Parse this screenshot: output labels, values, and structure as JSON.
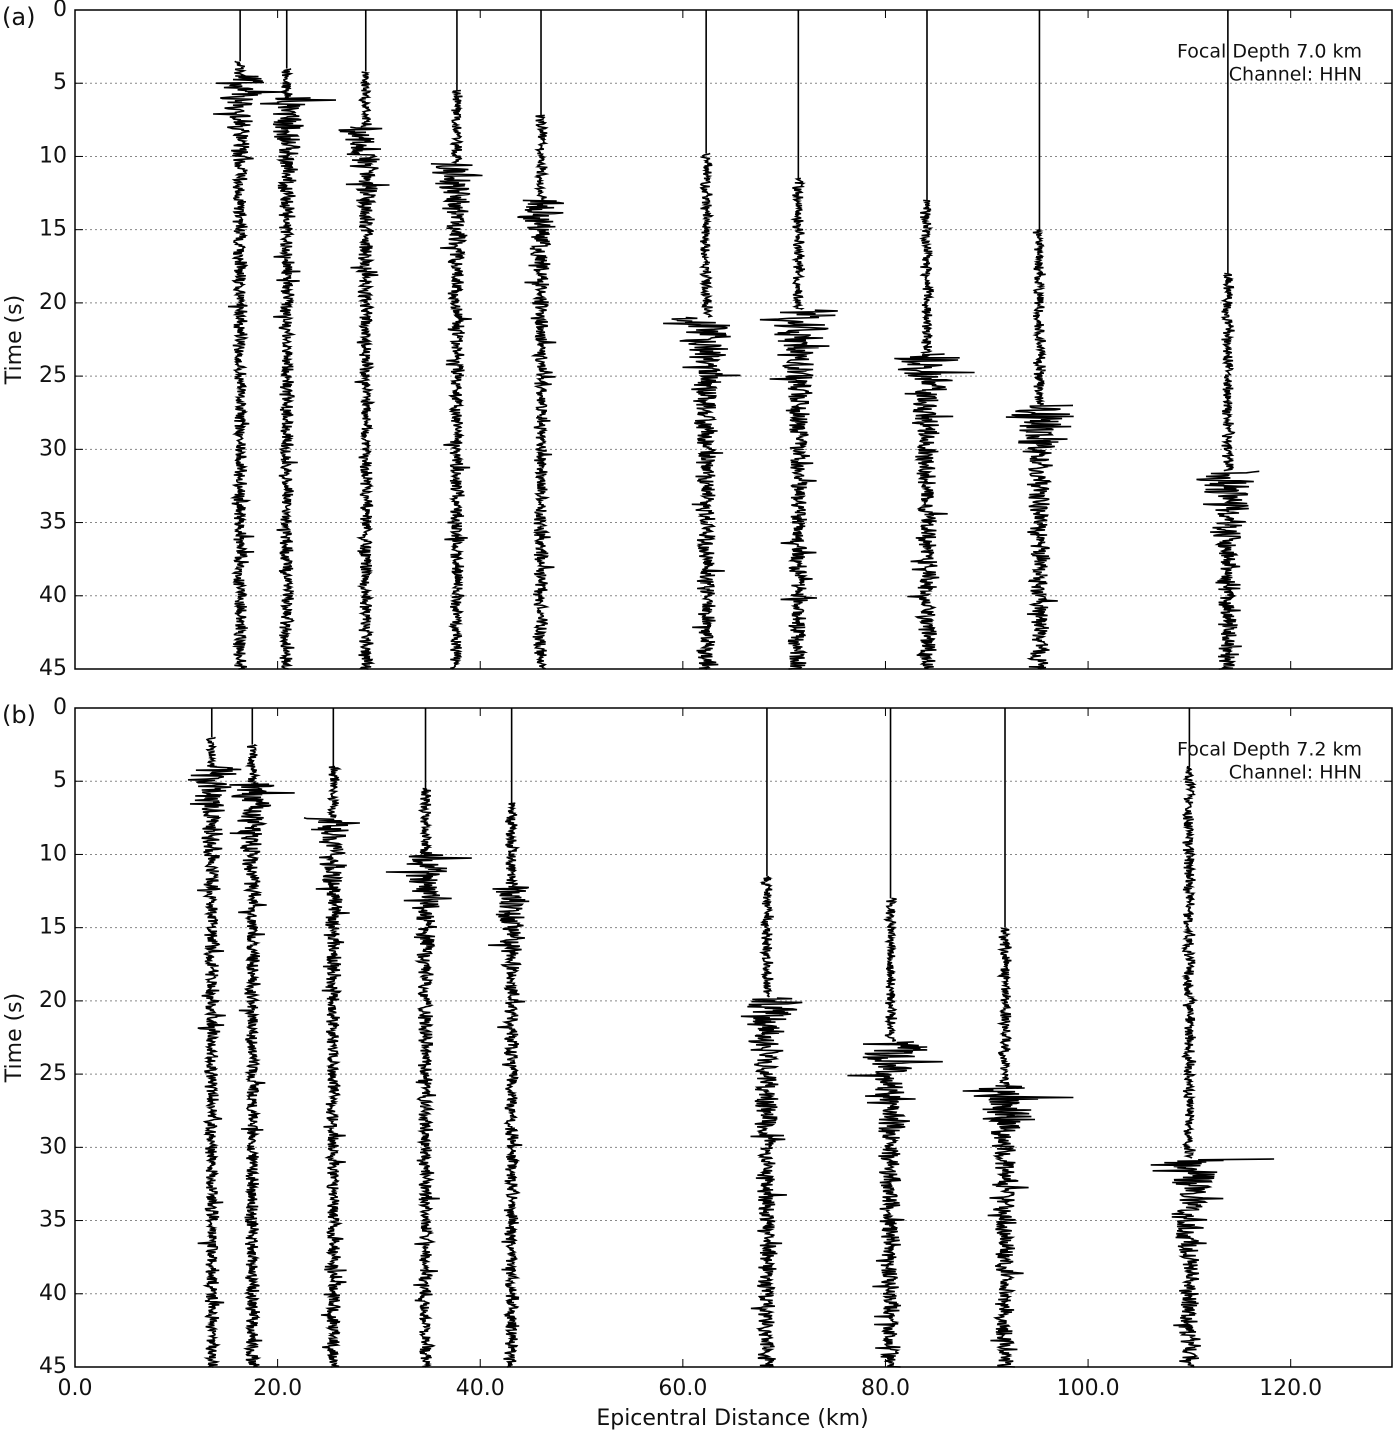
{
  "chart_data": [
    {
      "type": "record-section",
      "panel_label": "(a)",
      "annotations": [
        "Focal Depth 7.0 km",
        "Channel: HHN"
      ],
      "ylabel": "Time (s)",
      "xlim": [
        0,
        130
      ],
      "ylim": [
        45,
        0
      ],
      "xticks": [
        0,
        20,
        40,
        60,
        80,
        100,
        120
      ],
      "yticks": [
        0,
        5,
        10,
        15,
        20,
        25,
        30,
        35,
        40,
        45
      ],
      "grid": "y",
      "color": "#000000",
      "traces": [
        {
          "x": 16.3,
          "p": 3.5,
          "s": 4.5
        },
        {
          "x": 20.9,
          "p": 4,
          "s": 6
        },
        {
          "x": 28.7,
          "p": 4.2,
          "s": 8
        },
        {
          "x": 37.7,
          "p": 5.5,
          "s": 10.5
        },
        {
          "x": 46.0,
          "p": 7.2,
          "s": 13
        },
        {
          "x": 62.3,
          "p": 9.8,
          "s": 21
        },
        {
          "x": 71.4,
          "p": 11.5,
          "s": 20.5
        },
        {
          "x": 84.1,
          "p": 13,
          "s": 23.5
        },
        {
          "x": 95.2,
          "p": 15,
          "s": 27
        },
        {
          "x": 113.8,
          "p": 18,
          "s": 31.5
        }
      ]
    },
    {
      "type": "record-section",
      "panel_label": "(b)",
      "annotations": [
        "Focal Depth 7.2 km",
        "Channel: HHN"
      ],
      "ylabel": "Time (s)",
      "xlabel": "Epicentral Distance (km)",
      "xlim": [
        0,
        130
      ],
      "ylim": [
        45,
        0
      ],
      "xticks": [
        {
          "value": 0,
          "label": "0.0"
        },
        {
          "value": 20,
          "label": "20.0"
        },
        {
          "value": 40,
          "label": "40.0"
        },
        {
          "value": 60,
          "label": "60.0"
        },
        {
          "value": 80,
          "label": "80.0"
        },
        {
          "value": 100,
          "label": "100.0"
        },
        {
          "value": 120,
          "label": "120.0"
        }
      ],
      "yticks": [
        0,
        5,
        10,
        15,
        20,
        25,
        30,
        35,
        40,
        45
      ],
      "grid": "y",
      "color": "#000000",
      "traces": [
        {
          "x": 13.5,
          "p": 2,
          "s": 4
        },
        {
          "x": 17.5,
          "p": 2.5,
          "s": 5.2
        },
        {
          "x": 25.5,
          "p": 4,
          "s": 7.5
        },
        {
          "x": 34.6,
          "p": 5.5,
          "s": 10
        },
        {
          "x": 43.1,
          "p": 6.5,
          "s": 12.2
        },
        {
          "x": 68.3,
          "p": 11.5,
          "s": 19.8
        },
        {
          "x": 80.5,
          "p": 13,
          "s": 22.8
        },
        {
          "x": 91.8,
          "p": 15,
          "s": 25.8
        },
        {
          "x": 110.0,
          "p": 4,
          "s": 30.8
        }
      ]
    }
  ]
}
